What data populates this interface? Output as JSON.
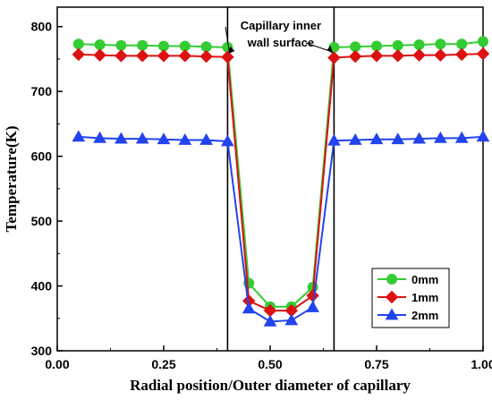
{
  "chart_data": {
    "type": "line",
    "xlabel": "Radial position/Outer diameter of capillary",
    "ylabel": "Temperature(K)",
    "xlim": [
      0.0,
      1.0
    ],
    "ylim": [
      300,
      830
    ],
    "xticks": [
      "0.00",
      "0.25",
      "0.50",
      "0.75",
      "1.00"
    ],
    "xtick_values": [
      0.0,
      0.25,
      0.5,
      0.75,
      1.0
    ],
    "yticks": [
      "300",
      "400",
      "500",
      "600",
      "700",
      "800"
    ],
    "ytick_values": [
      300,
      400,
      500,
      600,
      700,
      800
    ],
    "grid": false,
    "legend_position": "bottom-right",
    "annotation": {
      "text_line1": "Capillary inner",
      "text_line2": "wall surface",
      "wall_positions": [
        0.4,
        0.65
      ]
    },
    "series": [
      {
        "name": "0mm",
        "color": "#33cc33",
        "marker": "circle",
        "x": [
          0.05,
          0.1,
          0.15,
          0.2,
          0.25,
          0.3,
          0.35,
          0.4,
          0.45,
          0.5,
          0.55,
          0.6,
          0.65,
          0.7,
          0.75,
          0.8,
          0.85,
          0.9,
          0.95,
          1.0
        ],
        "y": [
          773,
          772,
          771,
          771,
          770,
          770,
          769,
          768,
          404,
          368,
          368,
          398,
          768,
          769,
          770,
          771,
          772,
          773,
          773,
          777
        ]
      },
      {
        "name": "1mm",
        "color": "#dd1111",
        "marker": "diamond",
        "x": [
          0.05,
          0.1,
          0.15,
          0.2,
          0.25,
          0.3,
          0.35,
          0.4,
          0.45,
          0.5,
          0.55,
          0.6,
          0.65,
          0.7,
          0.75,
          0.8,
          0.85,
          0.9,
          0.95,
          1.0
        ],
        "y": [
          757,
          756,
          755,
          755,
          755,
          755,
          754,
          753,
          377,
          362,
          362,
          385,
          752,
          754,
          755,
          755,
          756,
          756,
          757,
          758
        ]
      },
      {
        "name": "2mm",
        "color": "#2244ee",
        "marker": "triangle",
        "x": [
          0.05,
          0.1,
          0.15,
          0.2,
          0.25,
          0.3,
          0.35,
          0.4,
          0.45,
          0.5,
          0.55,
          0.6,
          0.65,
          0.7,
          0.75,
          0.8,
          0.85,
          0.9,
          0.95,
          1.0
        ],
        "y": [
          630,
          628,
          627,
          627,
          626,
          625,
          625,
          623,
          365,
          345,
          347,
          367,
          624,
          625,
          626,
          626,
          627,
          628,
          628,
          630
        ]
      }
    ]
  }
}
